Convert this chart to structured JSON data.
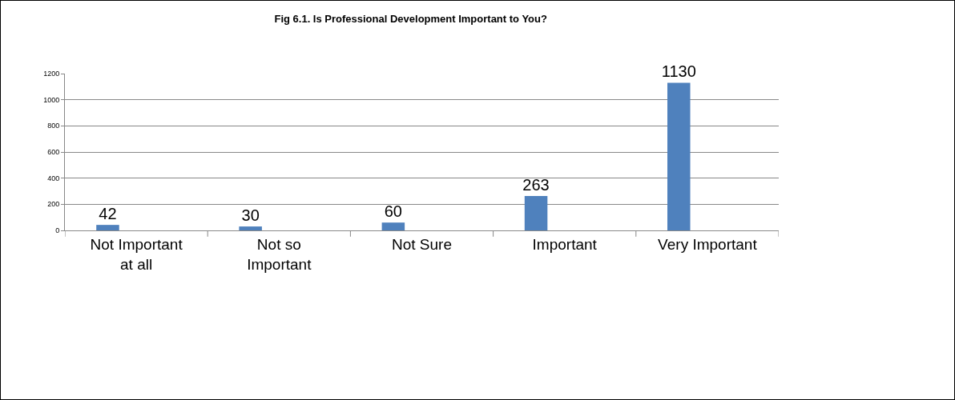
{
  "chart_data": {
    "type": "bar",
    "title": "Fig 6.1. Is Professional Development Important to You?",
    "categories": [
      "Not Important at all",
      "Not so Important",
      "Not Sure",
      "Important",
      "Very Important"
    ],
    "values": [
      42,
      30,
      60,
      263,
      1130
    ],
    "color": "#4f81bd",
    "ylim": [
      0,
      1200
    ],
    "yticks": [
      0,
      200,
      400,
      600,
      800,
      1000,
      1200
    ],
    "grid": "y",
    "data_labels": true
  }
}
